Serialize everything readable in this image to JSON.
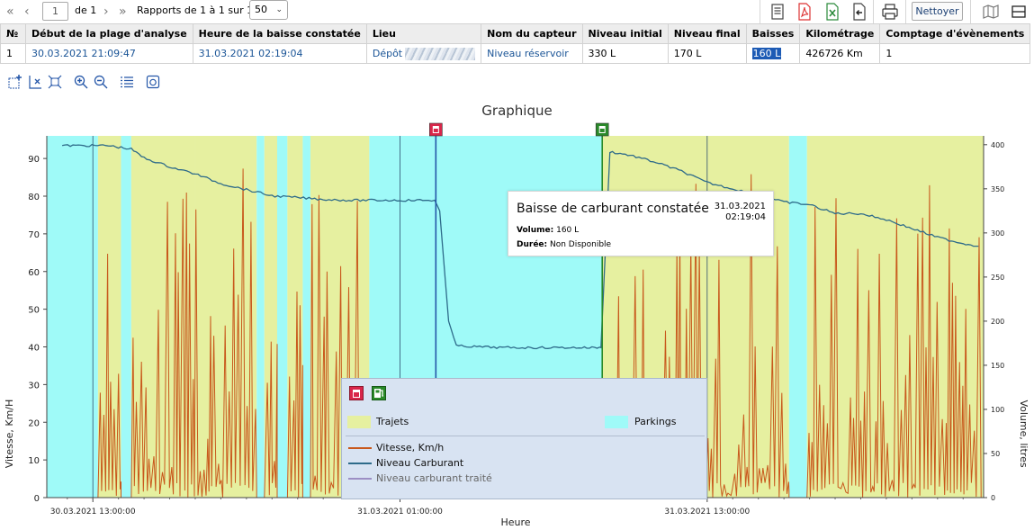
{
  "pager": {
    "first": "«",
    "prev": "‹",
    "page": "1",
    "of": "de 1",
    "next": "›",
    "last": "»",
    "summary": "Rapports de 1 à 1 sur 1",
    "page_size": "50"
  },
  "toolbar": {
    "icons": [
      "list-icon",
      "pdf-icon",
      "excel-icon",
      "export-icon",
      "print-icon",
      "map-icon",
      "panel-icon"
    ],
    "clean_label": "Nettoyer"
  },
  "table": {
    "headers": [
      "№",
      "Début de la plage d'analyse",
      "Heure de la baisse constatée",
      "Lieu",
      "Nom du capteur",
      "Niveau initial",
      "Niveau final",
      "Baisses",
      "Kilométrage",
      "Comptage d'évènements"
    ],
    "rows": [
      {
        "num": "1",
        "start": "30.03.2021 21:09:47",
        "drop_time": "31.03.2021 02:19:04",
        "place": "Dépôt",
        "sensor": "Niveau réservoir",
        "initial": "330 L",
        "final": "170 L",
        "drop": "160 L",
        "mileage": "426726 Km",
        "events": "1"
      }
    ]
  },
  "chart_tools": [
    "zoom-add-icon",
    "zoom-x-icon",
    "fit-icon",
    "zoom-in-icon",
    "zoom-out-icon",
    "legend-list-icon",
    "snapshot-icon"
  ],
  "chart_data": {
    "type": "line",
    "title": "Graphique",
    "xlabel": "Heure",
    "ylabel_left": "Vitesse, Km/H",
    "ylabel_right": "Volume, litres",
    "x_ticks": [
      "30.03.2021 13:00:00",
      "31.03.2021 01:00:00",
      "31.03.2021 13:00:00"
    ],
    "y_left_ticks": [
      0,
      10,
      20,
      30,
      40,
      50,
      60,
      70,
      80,
      90
    ],
    "y_right_ticks": [
      0,
      50,
      100,
      150,
      200,
      250,
      300,
      350,
      400
    ],
    "y_left_range": [
      0,
      96
    ],
    "y_right_range": [
      0,
      410
    ],
    "x_range_hours": [
      -1.8,
      34.8
    ],
    "x_unit": "hours since 30.03.2021 13:00:00",
    "fuel_series": {
      "name": "Niveau Carburant",
      "color": "#2e6b8a",
      "x": [
        -1.2,
        0.6,
        1.5,
        2.0,
        3.0,
        4.0,
        5.0,
        6.0,
        7.0,
        8.0,
        9.0,
        10.0,
        11.0,
        12.0,
        13.0,
        13.35,
        13.55,
        13.9,
        14.2,
        15.0,
        16.0,
        17.0,
        18.0,
        19.0,
        19.8,
        19.85,
        20.2,
        21.0,
        22.0,
        23.0,
        24.0,
        25.0,
        26.0,
        27.0,
        28.0,
        29.0,
        30.0,
        31.0,
        32.0,
        33.0,
        34.0,
        34.6
      ],
      "y": [
        399,
        399,
        395,
        385,
        375,
        367,
        356,
        349,
        342,
        340,
        338,
        337,
        337,
        337,
        337,
        337,
        325,
        200,
        172,
        171,
        170,
        170,
        170,
        170,
        170,
        170,
        392,
        388,
        380,
        370,
        357,
        350,
        343,
        335,
        332,
        322,
        322,
        315,
        305,
        295,
        288,
        285
      ]
    },
    "speed_series": {
      "name": "Vitesse, Km/h",
      "color": "#c8581c",
      "max": 88
    },
    "zones": [
      {
        "type": "parking",
        "from": -1.8,
        "to": 0.2
      },
      {
        "type": "trajet",
        "from": 0.2,
        "to": 1.1
      },
      {
        "type": "parking",
        "from": 1.1,
        "to": 1.5
      },
      {
        "type": "trajet",
        "from": 1.5,
        "to": 4.0
      },
      {
        "type": "trajet",
        "from": 4.0,
        "to": 6.4
      },
      {
        "type": "parking",
        "from": 6.4,
        "to": 6.7
      },
      {
        "type": "trajet",
        "from": 6.7,
        "to": 7.2
      },
      {
        "type": "parking",
        "from": 7.2,
        "to": 7.6
      },
      {
        "type": "trajet",
        "from": 7.6,
        "to": 8.2
      },
      {
        "type": "parking",
        "from": 8.2,
        "to": 8.5
      },
      {
        "type": "trajet",
        "from": 8.5,
        "to": 10.8
      },
      {
        "type": "parking",
        "from": 10.8,
        "to": 19.9
      },
      {
        "type": "trajet",
        "from": 19.9,
        "to": 27.2
      },
      {
        "type": "parking",
        "from": 27.2,
        "to": 27.9
      },
      {
        "type": "trajet",
        "from": 27.9,
        "to": 34.8
      }
    ],
    "speed_segments": [
      {
        "from": 0.2,
        "to": 1.1
      },
      {
        "from": 1.5,
        "to": 6.4
      },
      {
        "from": 6.7,
        "to": 7.2
      },
      {
        "from": 7.6,
        "to": 8.2
      },
      {
        "from": 8.5,
        "to": 10.8
      },
      {
        "from": 20.3,
        "to": 27.2
      },
      {
        "from": 27.9,
        "to": 34.7
      }
    ],
    "markers": [
      {
        "type": "drop",
        "x": 13.4,
        "color": "#d9264a"
      },
      {
        "type": "fill",
        "x": 19.9,
        "color": "#2a8a2a"
      }
    ]
  },
  "tooltip": {
    "title": "Baisse de carburant constatée",
    "date": "31.03.2021",
    "time": "02:19:04",
    "volume_label": "Volume:",
    "volume_value": "160 L",
    "duration_label": "Durée:",
    "duration_value": "Non Disponible"
  },
  "legend": {
    "trips": "Trajets",
    "parkings": "Parkings",
    "speed": "Vitesse, Km/h",
    "fuel": "Niveau Carburant",
    "fuel_processed": "Niveau carburant traité",
    "colors": {
      "trips": "#e6f0a0",
      "parkings": "#9ffaf8",
      "speed": "#c8581c",
      "fuel": "#2e6b8a",
      "fuel_processed": "#9c8fc4"
    }
  }
}
